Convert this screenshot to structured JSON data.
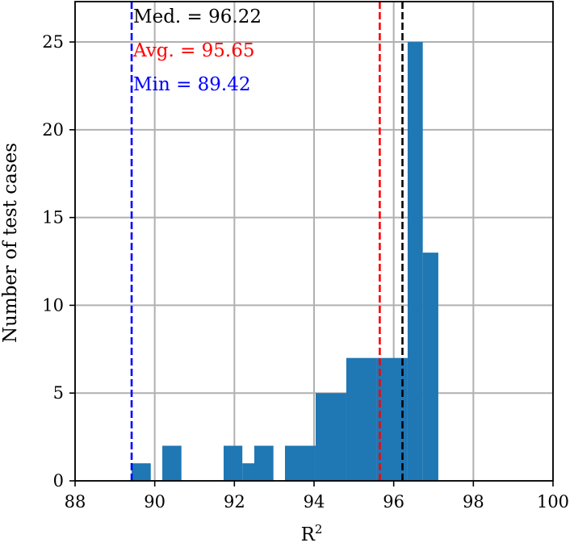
{
  "chart_data": {
    "type": "bar",
    "subtype": "histogram",
    "xlabel": "R",
    "xlabel_superscript": "2",
    "ylabel": "Number of test cases",
    "xlim": [
      88,
      100
    ],
    "ylim": [
      0,
      27.3
    ],
    "xticks": [
      88,
      90,
      92,
      94,
      96,
      98,
      100
    ],
    "yticks": [
      0,
      5,
      10,
      15,
      20,
      25
    ],
    "grid": true,
    "bar_color": "#1f77b4",
    "bins": [
      {
        "left": 89.42,
        "right": 89.9,
        "count": 1
      },
      {
        "left": 90.19,
        "right": 90.67,
        "count": 2
      },
      {
        "left": 91.73,
        "right": 92.2,
        "count": 2
      },
      {
        "left": 92.2,
        "right": 92.5,
        "count": 1
      },
      {
        "left": 92.5,
        "right": 92.98,
        "count": 2
      },
      {
        "left": 93.27,
        "right": 94.04,
        "count": 2
      },
      {
        "left": 94.04,
        "right": 94.81,
        "count": 5
      },
      {
        "left": 94.81,
        "right": 95.58,
        "count": 7
      },
      {
        "left": 95.58,
        "right": 96.35,
        "count": 7
      },
      {
        "left": 96.35,
        "right": 96.73,
        "count": 25
      },
      {
        "left": 96.73,
        "right": 97.12,
        "count": 13
      }
    ],
    "stat_lines": [
      {
        "label": "Med. = 96.22",
        "value": 96.22,
        "color": "#000000",
        "style": "dashed"
      },
      {
        "label": "Avg. = 95.65",
        "value": 95.65,
        "color": "#ff0000",
        "style": "dashed"
      },
      {
        "label": "Min = 89.42",
        "value": 89.42,
        "color": "#0000ff",
        "style": "dashed"
      }
    ]
  }
}
